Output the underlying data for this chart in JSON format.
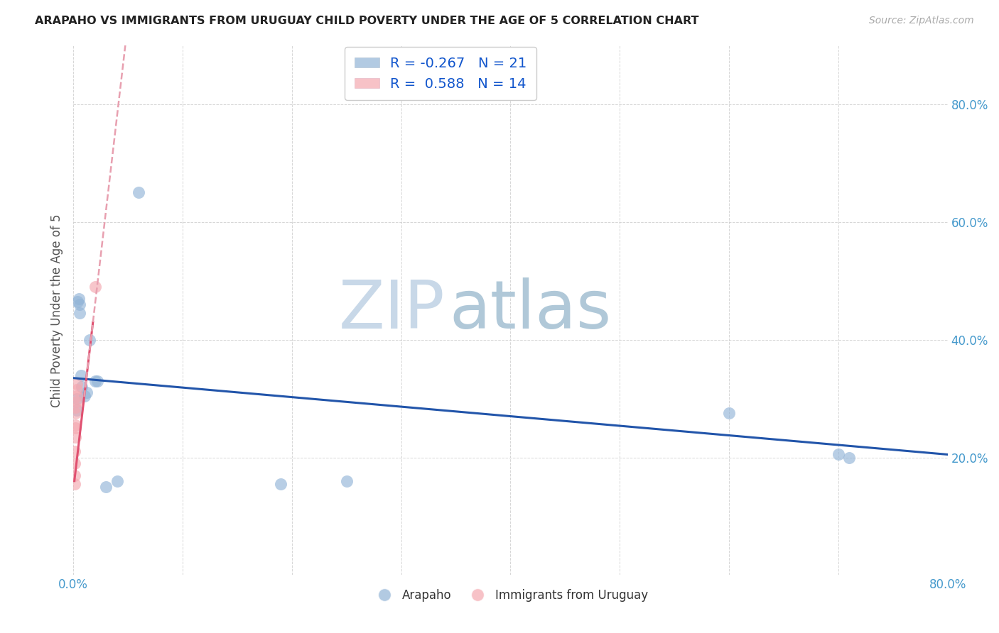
{
  "title": "ARAPAHO VS IMMIGRANTS FROM URUGUAY CHILD POVERTY UNDER THE AGE OF 5 CORRELATION CHART",
  "source": "Source: ZipAtlas.com",
  "ylabel": "Child Poverty Under the Age of 5",
  "xlim": [
    0.0,
    0.8
  ],
  "ylim": [
    0.0,
    0.9
  ],
  "arapaho_x": [
    0.003,
    0.003,
    0.004,
    0.005,
    0.006,
    0.006,
    0.007,
    0.008,
    0.01,
    0.012,
    0.015,
    0.02,
    0.022,
    0.03,
    0.04,
    0.06,
    0.19,
    0.25,
    0.6,
    0.7,
    0.71
  ],
  "arapaho_y": [
    0.3,
    0.28,
    0.465,
    0.47,
    0.46,
    0.445,
    0.34,
    0.32,
    0.305,
    0.31,
    0.4,
    0.33,
    0.33,
    0.15,
    0.16,
    0.65,
    0.155,
    0.16,
    0.275,
    0.205,
    0.2
  ],
  "uruguay_x": [
    0.001,
    0.001,
    0.001,
    0.001,
    0.002,
    0.002,
    0.002,
    0.002,
    0.002,
    0.003,
    0.003,
    0.003,
    0.003,
    0.02
  ],
  "uruguay_y": [
    0.155,
    0.17,
    0.19,
    0.21,
    0.235,
    0.25,
    0.255,
    0.275,
    0.285,
    0.295,
    0.305,
    0.315,
    0.325,
    0.49
  ],
  "arapaho_color": "#92B4D7",
  "uruguay_color": "#F4A8B0",
  "arapaho_R": -0.267,
  "arapaho_N": 21,
  "uruguay_R": 0.588,
  "uruguay_N": 14,
  "trend_blue_color": "#2255AA",
  "trend_pink_color": "#E05070",
  "trend_pink_dash_color": "#E8A0B0",
  "watermark_zip": "ZIP",
  "watermark_atlas": "atlas",
  "watermark_zip_color": "#C8D8E8",
  "watermark_atlas_color": "#B0C8D8",
  "background_color": "#FFFFFF",
  "legend_text_color": "#1155CC",
  "tick_color": "#4499CC"
}
